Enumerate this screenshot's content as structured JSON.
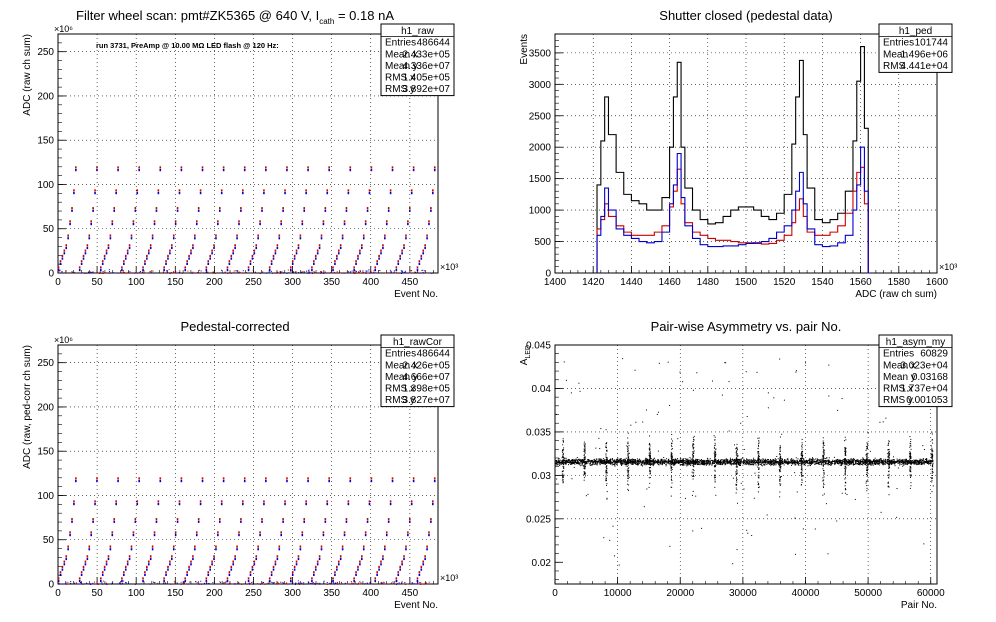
{
  "chart_data": [
    {
      "type": "scatter",
      "title": "Filter wheel scan: pmt#ZK5365 @   640 V, I",
      "title_sub": "cath",
      "title_tail": " = 0.18 nA",
      "annotation": "run 3731, PreAmp @ 10.00 MΩ LED flash @  120 Hz:",
      "xlabel": "Event No.",
      "ylabel": "ADC (raw ch sum)",
      "x_exponent": "×10³",
      "y_exponent": "×10⁶",
      "xlim": [
        0,
        486
      ],
      "ylim": [
        0,
        270
      ],
      "x_ticks": [
        "0",
        "50",
        "100",
        "150",
        "200",
        "250",
        "300",
        "350",
        "400",
        "450"
      ],
      "y_ticks": [
        "0",
        "50",
        "100",
        "150",
        "200",
        "250"
      ],
      "step_levels": [
        5,
        12,
        18,
        24,
        30,
        41,
        57,
        72,
        92,
        118
      ],
      "stat_box": {
        "name": "h1_raw",
        "rows": [
          [
            "Entries",
            "486644"
          ],
          [
            "Mean x",
            "2.433e+05"
          ],
          [
            "Mean y",
            "4.336e+07"
          ],
          [
            "RMS x",
            "1.405e+05"
          ],
          [
            "RMS y",
            "3.892e+07"
          ]
        ]
      },
      "colors": {
        "a": "#cc0000",
        "b": "#0000cc"
      },
      "grid": true
    },
    {
      "type": "line",
      "title": "Shutter closed (pedestal data)",
      "xlabel": "ADC (raw ch sum)",
      "ylabel": "Events",
      "x_exponent": "×10³",
      "xlim": [
        1400,
        1600
      ],
      "ylim": [
        0,
        3800
      ],
      "x_ticks": [
        "1400",
        "1420",
        "1440",
        "1460",
        "1480",
        "1500",
        "1520",
        "1540",
        "1560",
        "1580",
        "1600"
      ],
      "y_ticks": [
        "0",
        "500",
        "1000",
        "1500",
        "2000",
        "2500",
        "3000",
        "3500"
      ],
      "stat_box": {
        "name": "h1_ped",
        "rows": [
          [
            "Entries",
            "101744"
          ],
          [
            "Mean",
            "1.496e+06"
          ],
          [
            "RMS",
            "4.441e+04"
          ]
        ]
      },
      "series": [
        {
          "color": "#000000",
          "x": [
            1422,
            1424,
            1426,
            1428,
            1432,
            1436,
            1440,
            1444,
            1448,
            1452,
            1456,
            1460,
            1462,
            1464,
            1466,
            1468,
            1472,
            1476,
            1480,
            1484,
            1488,
            1492,
            1496,
            1500,
            1504,
            1508,
            1512,
            1516,
            1520,
            1524,
            1526,
            1528,
            1530,
            1532,
            1536,
            1540,
            1544,
            1548,
            1552,
            1556,
            1558,
            1560,
            1562,
            1564
          ],
          "y": [
            1400,
            2100,
            2800,
            2200,
            1600,
            1250,
            1150,
            1100,
            1000,
            1000,
            1200,
            2000,
            2800,
            3350,
            2000,
            1350,
            1000,
            850,
            780,
            800,
            900,
            1000,
            1050,
            1050,
            1000,
            900,
            850,
            950,
            1250,
            2050,
            2800,
            3380,
            2200,
            1350,
            850,
            800,
            850,
            950,
            1300,
            2100,
            3050,
            3600,
            2300,
            0
          ]
        },
        {
          "color": "#cc0000",
          "x": [
            1422,
            1424,
            1426,
            1428,
            1432,
            1436,
            1440,
            1444,
            1448,
            1452,
            1456,
            1460,
            1462,
            1464,
            1466,
            1468,
            1472,
            1476,
            1480,
            1484,
            1488,
            1492,
            1496,
            1500,
            1504,
            1508,
            1512,
            1516,
            1520,
            1524,
            1526,
            1528,
            1530,
            1532,
            1536,
            1540,
            1544,
            1548,
            1552,
            1556,
            1558,
            1560,
            1562,
            1564
          ],
          "y": [
            700,
            850,
            1100,
            900,
            750,
            650,
            600,
            600,
            600,
            650,
            750,
            1050,
            1300,
            1650,
            1100,
            800,
            650,
            600,
            550,
            520,
            520,
            500,
            480,
            480,
            470,
            460,
            470,
            520,
            600,
            800,
            1000,
            1180,
            900,
            650,
            600,
            600,
            650,
            750,
            950,
            1300,
            1600,
            1680,
            1100,
            0
          ]
        },
        {
          "color": "#0000cc",
          "x": [
            1422,
            1424,
            1426,
            1428,
            1432,
            1436,
            1440,
            1444,
            1448,
            1452,
            1456,
            1460,
            1462,
            1464,
            1466,
            1468,
            1472,
            1476,
            1480,
            1484,
            1488,
            1492,
            1496,
            1500,
            1504,
            1508,
            1512,
            1516,
            1520,
            1524,
            1526,
            1528,
            1530,
            1532,
            1536,
            1540,
            1544,
            1548,
            1552,
            1556,
            1558,
            1560,
            1562,
            1564
          ],
          "y": [
            600,
            900,
            1350,
            1000,
            700,
            600,
            550,
            500,
            480,
            500,
            650,
            1100,
            1400,
            1900,
            1200,
            750,
            550,
            450,
            420,
            420,
            430,
            430,
            450,
            470,
            480,
            500,
            550,
            650,
            750,
            1000,
            1300,
            1600,
            1100,
            700,
            450,
            420,
            430,
            480,
            600,
            1000,
            1400,
            2000,
            1300,
            0
          ]
        }
      ],
      "grid": true
    },
    {
      "type": "scatter",
      "title": "Pedestal-corrected",
      "xlabel": "Event No.",
      "ylabel": "ADC (raw, ped-corr ch sum)",
      "x_exponent": "×10³",
      "y_exponent": "×10⁶",
      "xlim": [
        0,
        486
      ],
      "ylim": [
        0,
        270
      ],
      "x_ticks": [
        "0",
        "50",
        "100",
        "150",
        "200",
        "250",
        "300",
        "350",
        "400",
        "450"
      ],
      "y_ticks": [
        "0",
        "50",
        "100",
        "150",
        "200",
        "250"
      ],
      "step_levels": [
        5,
        12,
        18,
        24,
        30,
        41,
        57,
        72,
        92,
        118
      ],
      "stat_box": {
        "name": "h1_rawCor",
        "rows": [
          [
            "Entries",
            "486644"
          ],
          [
            "Mean x",
            "2.426e+05"
          ],
          [
            "Mean y",
            "4.666e+07"
          ],
          [
            "RMS x",
            "1.398e+05"
          ],
          [
            "RMS y",
            "3.827e+07"
          ]
        ]
      },
      "colors": {
        "a": "#cc0000",
        "b": "#0000cc"
      },
      "grid": true
    },
    {
      "type": "scatter",
      "title": "Pair-wise Asymmetry vs. pair No.",
      "xlabel": "Pair No.",
      "ylabel": "A",
      "ylabel_sub": "LED",
      "xlim": [
        0,
        61000
      ],
      "ylim": [
        0.0175,
        0.045
      ],
      "x_ticks": [
        "0",
        "10000",
        "20000",
        "30000",
        "40000",
        "50000",
        "60000"
      ],
      "y_ticks": [
        "0.02",
        "0.025",
        "0.03",
        "0.035",
        "0.04",
        "0.045"
      ],
      "band_center": 0.0316,
      "stat_box": {
        "name": "h1_asym_my",
        "rows": [
          [
            "Entries",
            "60829"
          ],
          [
            "Mean x",
            "3.023e+04"
          ],
          [
            "Mean y",
            "0.03168"
          ],
          [
            "RMS x",
            "1.737e+04"
          ],
          [
            "RMS y",
            "0.001053"
          ]
        ]
      },
      "grid": true
    }
  ]
}
